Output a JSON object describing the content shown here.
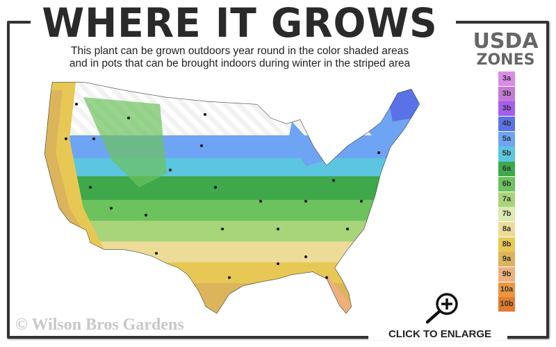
{
  "header": {
    "title": "WHERE IT GROWS",
    "subtitle_line1": "This plant can be grown outdoors year round in the color shaded areas",
    "subtitle_line2": "and in pots that can be brought indoors during winter in the striped area"
  },
  "legend": {
    "title_line1": "USDA",
    "title_line2": "ZONES",
    "zones": [
      {
        "label": "3a",
        "color": "#d98ce6"
      },
      {
        "label": "3b",
        "color": "#c57ad8"
      },
      {
        "label": "3b",
        "color": "#a45ef0"
      },
      {
        "label": "4b",
        "color": "#5a72e8"
      },
      {
        "label": "5a",
        "color": "#6ea4f4"
      },
      {
        "label": "5b",
        "color": "#5cc6e0"
      },
      {
        "label": "6a",
        "color": "#3fa84a"
      },
      {
        "label": "6b",
        "color": "#6cc25c"
      },
      {
        "label": "7a",
        "color": "#a8d47a"
      },
      {
        "label": "7b",
        "color": "#dcebb0"
      },
      {
        "label": "8a",
        "color": "#ecdc98"
      },
      {
        "label": "8b",
        "color": "#e8c854"
      },
      {
        "label": "9a",
        "color": "#dcb45c"
      },
      {
        "label": "9b",
        "color": "#f0b07c"
      },
      {
        "label": "10a",
        "color": "#ec9640"
      },
      {
        "label": "10b",
        "color": "#e27c30"
      }
    ]
  },
  "watermark": "© Wilson Bros Gardens",
  "enlarge": {
    "label": "CLICK TO ENLARGE",
    "icon": "zoom-in-icon"
  }
}
